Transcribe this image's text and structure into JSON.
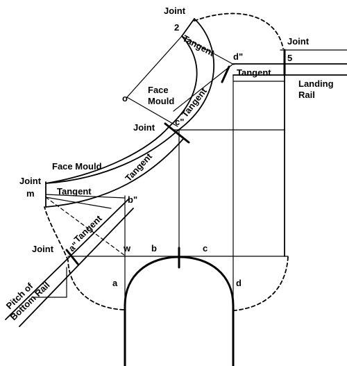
{
  "labels": {
    "joint": "Joint",
    "tangent": "Tangent",
    "face_mould": "Face Mould",
    "face": "Face",
    "mould": "Mould",
    "landing": "Landing",
    "rail": "Rail",
    "pitch_of": "Pitch of",
    "bottom_rail": "Bottom Rail",
    "point_2": "2",
    "point_5": "5",
    "point_o": "o",
    "point_m": "m",
    "point_w": "w",
    "point_a": "a",
    "point_b": "b",
    "point_c": "c",
    "point_d": "d",
    "point_a2": "a\"",
    "point_b2": "b\"",
    "point_c2": "c\"",
    "point_d2": "d\""
  }
}
